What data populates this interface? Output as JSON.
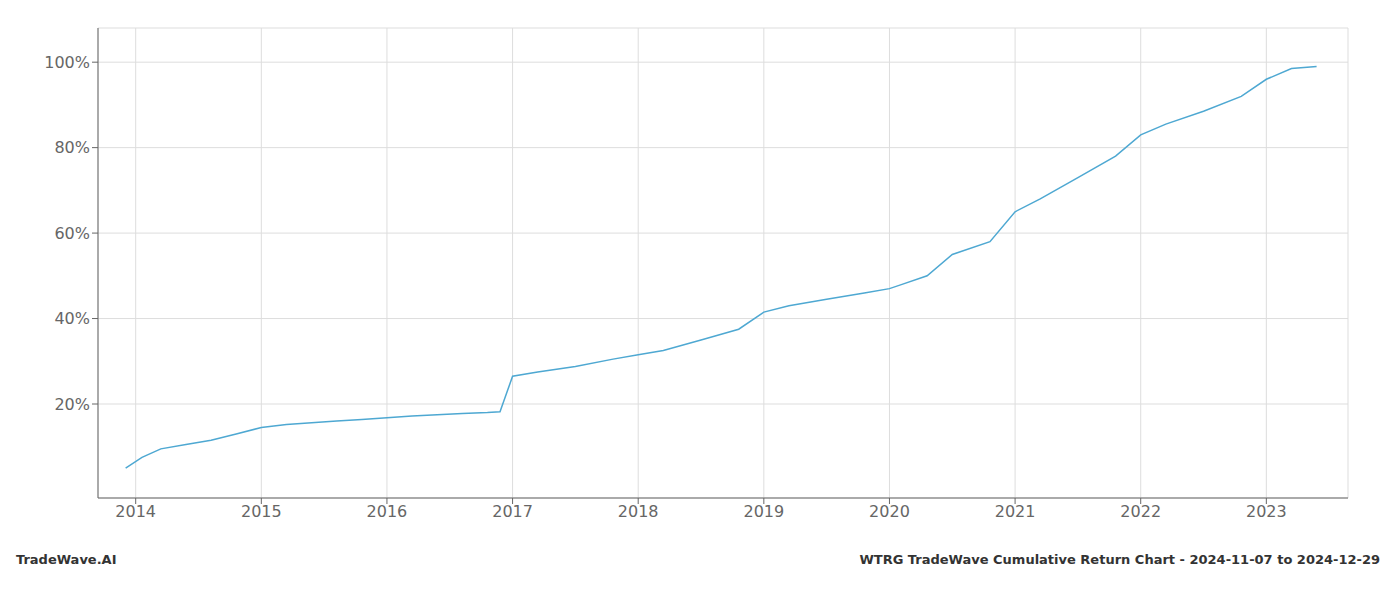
{
  "chart_data": {
    "type": "line",
    "title": "WTRG TradeWave Cumulative Return Chart - 2024-11-07 to 2024-12-29",
    "annotations": [
      "TradeWave.AI"
    ],
    "x": [
      2013.92,
      2014.05,
      2014.2,
      2014.4,
      2014.6,
      2014.8,
      2015.0,
      2015.2,
      2015.4,
      2015.6,
      2015.8,
      2016.0,
      2016.2,
      2016.4,
      2016.6,
      2016.8,
      2016.9,
      2017.0,
      2017.2,
      2017.5,
      2017.8,
      2018.0,
      2018.2,
      2018.5,
      2018.8,
      2019.0,
      2019.2,
      2019.5,
      2019.8,
      2020.0,
      2020.1,
      2020.3,
      2020.5,
      2020.8,
      2021.0,
      2021.2,
      2021.5,
      2021.8,
      2022.0,
      2022.2,
      2022.5,
      2022.8,
      2023.0,
      2023.2,
      2023.4
    ],
    "values": [
      5.0,
      7.5,
      9.5,
      10.5,
      11.5,
      13.0,
      14.5,
      15.2,
      15.6,
      16.0,
      16.4,
      16.8,
      17.2,
      17.5,
      17.8,
      18.0,
      18.2,
      26.5,
      27.5,
      28.8,
      30.5,
      31.5,
      32.5,
      35.0,
      37.5,
      41.5,
      43.0,
      44.5,
      46.0,
      47.0,
      48.0,
      50.0,
      55.0,
      58.0,
      65.0,
      68.0,
      73.0,
      78.0,
      83.0,
      85.5,
      88.5,
      92.0,
      96.0,
      98.5,
      99.0
    ],
    "color": "#4ea8d2",
    "xlim": [
      2013.7,
      2023.65
    ],
    "xticks": [
      2014,
      2015,
      2016,
      2017,
      2018,
      2019,
      2020,
      2021,
      2022,
      2023
    ],
    "ylim": [
      -2,
      108
    ],
    "yticks": [
      {
        "value": 20,
        "label": "20%"
      },
      {
        "value": 40,
        "label": "40%"
      },
      {
        "value": 60,
        "label": "60%"
      },
      {
        "value": 80,
        "label": "80%"
      },
      {
        "value": 100,
        "label": "100%"
      }
    ],
    "grid": true
  }
}
